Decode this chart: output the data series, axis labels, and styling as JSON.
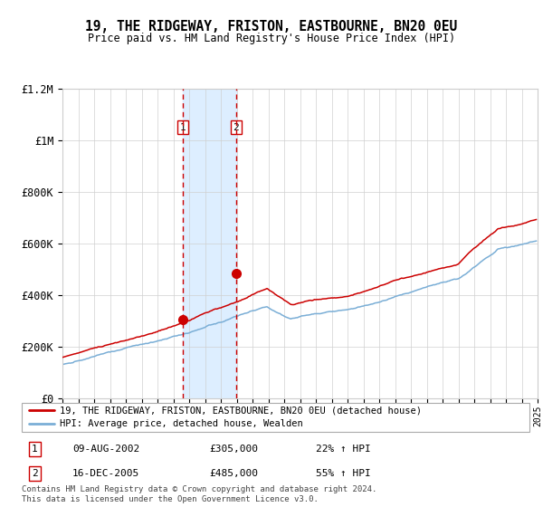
{
  "title": "19, THE RIDGEWAY, FRISTON, EASTBOURNE, BN20 0EU",
  "subtitle": "Price paid vs. HM Land Registry's House Price Index (HPI)",
  "legend_line1": "19, THE RIDGEWAY, FRISTON, EASTBOURNE, BN20 0EU (detached house)",
  "legend_line2": "HPI: Average price, detached house, Wealden",
  "transaction1_date": "09-AUG-2002",
  "transaction1_price": "£305,000",
  "transaction1_hpi": "22% ↑ HPI",
  "transaction1_year": 2002.6,
  "transaction1_value": 305000,
  "transaction2_date": "16-DEC-2005",
  "transaction2_price": "£485,000",
  "transaction2_hpi": "55% ↑ HPI",
  "transaction2_year": 2005.97,
  "transaction2_value": 485000,
  "footer": "Contains HM Land Registry data © Crown copyright and database right 2024.\nThis data is licensed under the Open Government Licence v3.0.",
  "red_color": "#cc0000",
  "blue_color": "#7aaed6",
  "highlight_color": "#ddeeff",
  "ylim": [
    0,
    1200000
  ],
  "yticks": [
    0,
    200000,
    400000,
    600000,
    800000,
    1000000,
    1200000
  ],
  "ytick_labels": [
    "£0",
    "£200K",
    "£400K",
    "£600K",
    "£800K",
    "£1M",
    "£1.2M"
  ],
  "xstart": 1995,
  "xend": 2025
}
